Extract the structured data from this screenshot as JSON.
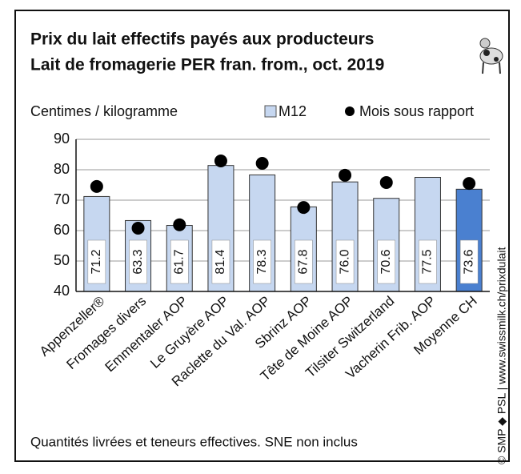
{
  "chart_data": {
    "type": "bar",
    "title": [
      "Prix du lait effectifs payés aux producteurs",
      "Lait de fromagerie PER fran. from., oct. 2019"
    ],
    "y_label": "Centimes / kilogramme",
    "footnote": "Quantités livrées et teneurs effectives. SNE non inclus",
    "source": "© SMP ◆ PSL | www.swissmilk.ch/prixdulait",
    "categories": [
      "Appenzeller®",
      "Fromages divers",
      "Emmentaler AOP",
      "Le Gruyère AOP",
      "Raclette du Val. AOP",
      "Sbrinz AOP",
      "Tête de Moine AOP",
      "Tilsiter Switzerland",
      "Vacherin Frib. AOP",
      "Moyenne CH"
    ],
    "series": [
      {
        "name": "M12",
        "color": "#c6d7f0",
        "highlight_color": "#4a80d0",
        "values": [
          71.2,
          63.3,
          61.7,
          81.4,
          78.3,
          67.8,
          76.0,
          70.6,
          77.5,
          73.6
        ],
        "value_labels": [
          "71.2",
          "63.3",
          "61.7",
          "81.4",
          "78.3",
          "67.8",
          "76.0",
          "70.6",
          "77.5",
          "73.6"
        ]
      },
      {
        "name": "Mois sous rapport",
        "color": "#000000",
        "values": [
          74.5,
          60.8,
          61.9,
          82.9,
          82.1,
          67.6,
          78.2,
          75.8,
          null,
          75.5
        ]
      }
    ],
    "ylim": [
      40,
      90
    ],
    "yticks": [
      40,
      50,
      60,
      70,
      80,
      90
    ],
    "grid": true
  }
}
